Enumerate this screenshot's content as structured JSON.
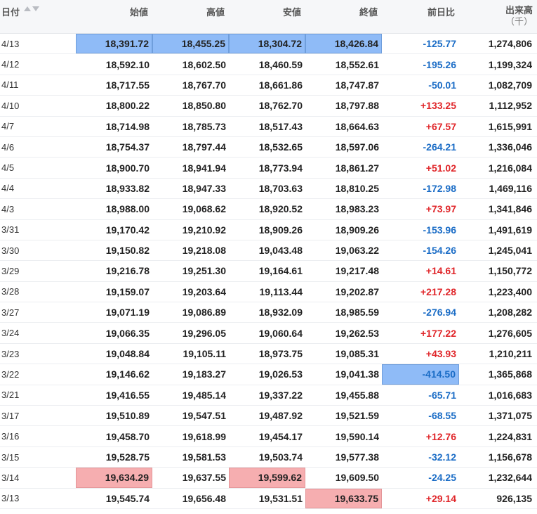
{
  "header": {
    "date": "日付",
    "open": "始値",
    "high": "高値",
    "low": "安値",
    "close": "終値",
    "change": "前日比",
    "volume_line1": "出来高",
    "volume_line2": "（千）"
  },
  "colors": {
    "highlight_blue": "#8fbbf7",
    "highlight_red": "#f6aeb0",
    "negative": "#1a6cc6",
    "positive": "#e0262a"
  },
  "rows": [
    {
      "date": "4/13",
      "open": "18,391.72",
      "high": "18,455.25",
      "low": "18,304.72",
      "close": "18,426.84",
      "change": "-125.77",
      "volume": "1,274,806",
      "hl": {
        "open": "blue",
        "high": "blue",
        "low": "blue",
        "close": "blue"
      }
    },
    {
      "date": "4/12",
      "open": "18,592.10",
      "high": "18,602.50",
      "low": "18,460.59",
      "close": "18,552.61",
      "change": "-195.26",
      "volume": "1,199,324"
    },
    {
      "date": "4/11",
      "open": "18,717.55",
      "high": "18,767.70",
      "low": "18,661.86",
      "close": "18,747.87",
      "change": "-50.01",
      "volume": "1,082,709"
    },
    {
      "date": "4/10",
      "open": "18,800.22",
      "high": "18,850.80",
      "low": "18,762.70",
      "close": "18,797.88",
      "change": "+133.25",
      "volume": "1,112,952"
    },
    {
      "date": "4/7",
      "open": "18,714.98",
      "high": "18,785.73",
      "low": "18,517.43",
      "close": "18,664.63",
      "change": "+67.57",
      "volume": "1,615,991"
    },
    {
      "date": "4/6",
      "open": "18,754.37",
      "high": "18,797.44",
      "low": "18,532.65",
      "close": "18,597.06",
      "change": "-264.21",
      "volume": "1,336,046"
    },
    {
      "date": "4/5",
      "open": "18,900.70",
      "high": "18,941.94",
      "low": "18,773.94",
      "close": "18,861.27",
      "change": "+51.02",
      "volume": "1,216,084"
    },
    {
      "date": "4/4",
      "open": "18,933.82",
      "high": "18,947.33",
      "low": "18,703.63",
      "close": "18,810.25",
      "change": "-172.98",
      "volume": "1,469,116"
    },
    {
      "date": "4/3",
      "open": "18,988.00",
      "high": "19,068.62",
      "low": "18,920.52",
      "close": "18,983.23",
      "change": "+73.97",
      "volume": "1,341,846"
    },
    {
      "date": "3/31",
      "open": "19,170.42",
      "high": "19,210.92",
      "low": "18,909.26",
      "close": "18,909.26",
      "change": "-153.96",
      "volume": "1,491,619"
    },
    {
      "date": "3/30",
      "open": "19,150.82",
      "high": "19,218.08",
      "low": "19,043.48",
      "close": "19,063.22",
      "change": "-154.26",
      "volume": "1,245,041"
    },
    {
      "date": "3/29",
      "open": "19,216.78",
      "high": "19,251.30",
      "low": "19,164.61",
      "close": "19,217.48",
      "change": "+14.61",
      "volume": "1,150,772"
    },
    {
      "date": "3/28",
      "open": "19,159.07",
      "high": "19,203.64",
      "low": "19,113.44",
      "close": "19,202.87",
      "change": "+217.28",
      "volume": "1,223,400"
    },
    {
      "date": "3/27",
      "open": "19,071.19",
      "high": "19,086.89",
      "low": "18,932.09",
      "close": "18,985.59",
      "change": "-276.94",
      "volume": "1,208,282"
    },
    {
      "date": "3/24",
      "open": "19,066.35",
      "high": "19,296.05",
      "low": "19,060.64",
      "close": "19,262.53",
      "change": "+177.22",
      "volume": "1,276,605"
    },
    {
      "date": "3/23",
      "open": "19,048.84",
      "high": "19,105.11",
      "low": "18,973.75",
      "close": "19,085.31",
      "change": "+43.93",
      "volume": "1,210,211"
    },
    {
      "date": "3/22",
      "open": "19,146.62",
      "high": "19,183.27",
      "low": "19,026.53",
      "close": "19,041.38",
      "change": "-414.50",
      "volume": "1,365,868",
      "hl": {
        "change": "blue"
      }
    },
    {
      "date": "3/21",
      "open": "19,416.55",
      "high": "19,485.14",
      "low": "19,337.22",
      "close": "19,455.88",
      "change": "-65.71",
      "volume": "1,016,683"
    },
    {
      "date": "3/17",
      "open": "19,510.89",
      "high": "19,547.51",
      "low": "19,487.92",
      "close": "19,521.59",
      "change": "-68.55",
      "volume": "1,371,075"
    },
    {
      "date": "3/16",
      "open": "19,458.70",
      "high": "19,618.99",
      "low": "19,454.17",
      "close": "19,590.14",
      "change": "+12.76",
      "volume": "1,224,831"
    },
    {
      "date": "3/15",
      "open": "19,528.75",
      "high": "19,581.53",
      "low": "19,503.74",
      "close": "19,577.38",
      "change": "-32.12",
      "volume": "1,156,678"
    },
    {
      "date": "3/14",
      "open": "19,634.29",
      "high": "19,637.55",
      "low": "19,599.62",
      "close": "19,609.50",
      "change": "-24.25",
      "volume": "1,232,644",
      "hl": {
        "open": "red",
        "low": "red"
      }
    },
    {
      "date": "3/13",
      "open": "19,545.74",
      "high": "19,656.48",
      "low": "19,531.51",
      "close": "19,633.75",
      "change": "+29.14",
      "volume": "926,135",
      "hl": {
        "close": "red"
      }
    }
  ]
}
